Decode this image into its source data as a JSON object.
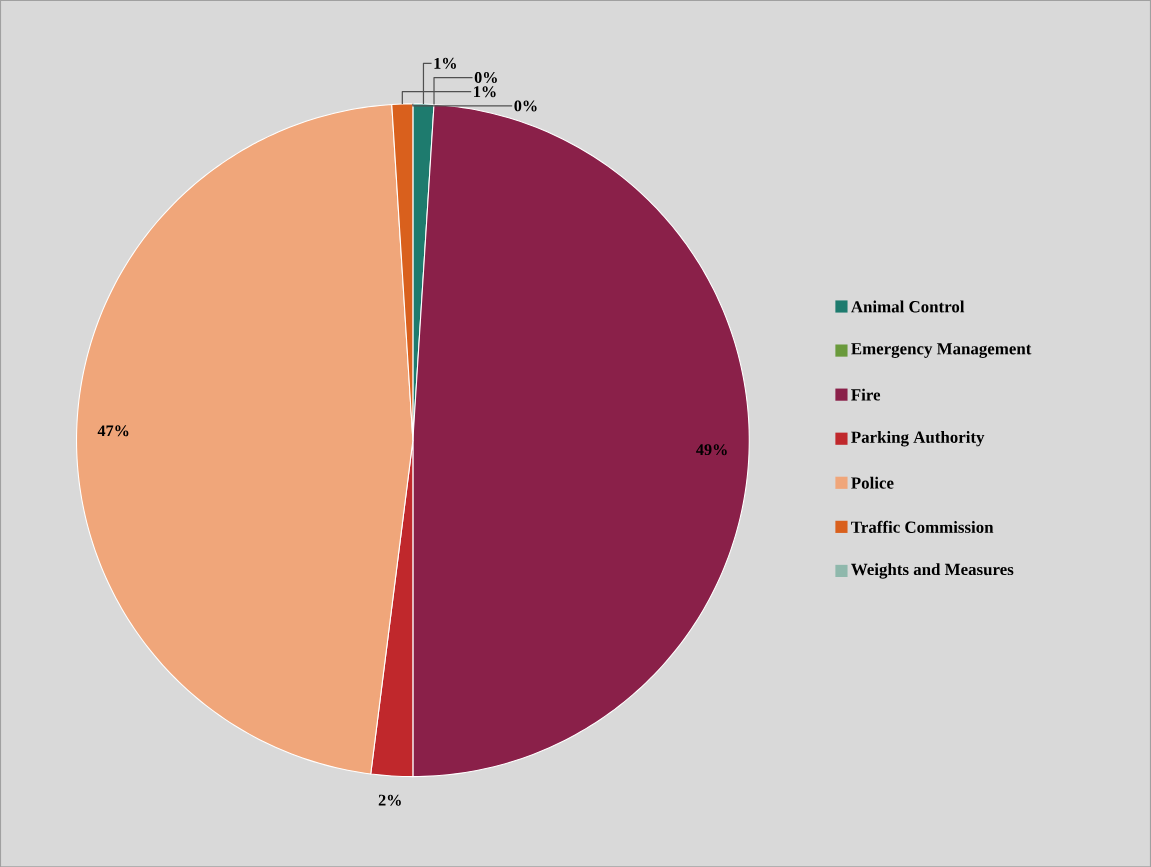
{
  "chart_data": {
    "type": "pie",
    "categories": [
      "Animal Control",
      "Emergency Management",
      "Fire",
      "Parking Authority",
      "Police",
      "Traffic Commission",
      "Weights and Measures"
    ],
    "values": [
      1,
      0,
      49,
      2,
      47,
      1,
      0
    ],
    "colors": [
      "#1e7b6e",
      "#6a9a3c",
      "#8a2049",
      "#c0282c",
      "#f0a67a",
      "#d9601d",
      "#8fb8ac"
    ],
    "value_labels": [
      "1%",
      "0%",
      "49%",
      "2%",
      "47%",
      "1%",
      "0%"
    ],
    "legend": "right"
  }
}
